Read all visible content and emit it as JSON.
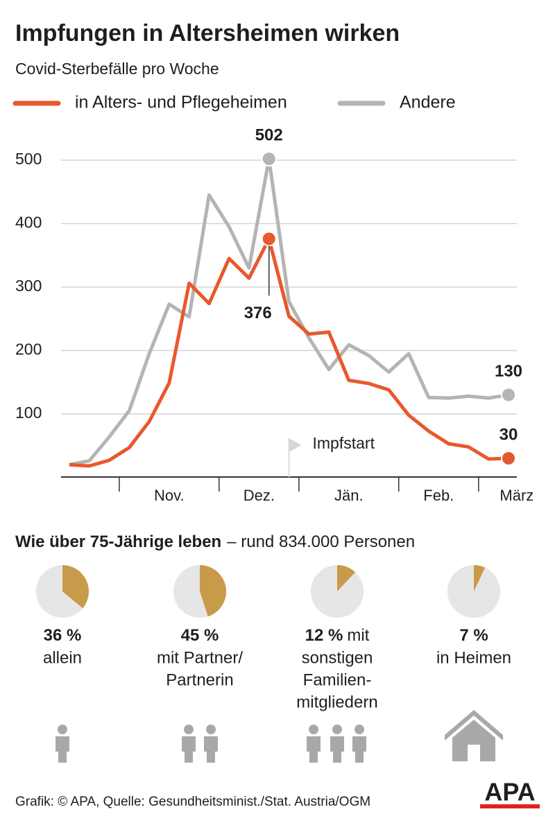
{
  "chart_data": [
    {
      "type": "line",
      "title": "Impfungen in Altersheimen wirken",
      "subtitle": "Covid-Sterbefälle pro Woche",
      "x": [
        0,
        1,
        2,
        3,
        4,
        5,
        6,
        7,
        8,
        9,
        10,
        11,
        12,
        13,
        14,
        15,
        16,
        17,
        18,
        19,
        20,
        21,
        22
      ],
      "xlim": [
        0,
        22
      ],
      "xticks": [
        2.5,
        7.5,
        11.5,
        16.5,
        20.5
      ],
      "months": [
        "Nov.",
        "Dez.",
        "Jän.",
        "Feb.",
        "März"
      ],
      "ylim": [
        0,
        500
      ],
      "yticks": [
        100,
        200,
        300,
        400,
        500
      ],
      "grid": true,
      "series": [
        {
          "name": "in Alters- und Pflegeheimen",
          "color": "#e8582e",
          "values": [
            20,
            18,
            27,
            47,
            88,
            149,
            306,
            274,
            345,
            314,
            376,
            254,
            226,
            229,
            153,
            148,
            138,
            98,
            73,
            53,
            48,
            29,
            30
          ],
          "labeled": [
            {
              "index": 10,
              "position": "below"
            },
            {
              "index": 22,
              "position": "above"
            }
          ]
        },
        {
          "name": "Andere",
          "color": "#b4b4b4",
          "values": [
            20,
            26,
            64,
            105,
            195,
            273,
            253,
            445,
            395,
            330,
            502,
            277,
            220,
            170,
            209,
            192,
            166,
            195,
            126,
            125,
            128,
            125,
            130
          ],
          "labeled": [
            {
              "index": 10,
              "position": "above"
            },
            {
              "index": 22,
              "position": "above"
            }
          ]
        }
      ],
      "annotations": [
        {
          "text": "Impfstart",
          "x": 11
        }
      ]
    },
    {
      "type": "pie",
      "title": "Wie über 75-Jährige leben",
      "subtitle": "– rund 834.000 Personen",
      "values": [
        36,
        45,
        12,
        7
      ],
      "value_labels": [
        "36 %",
        "45 %",
        "12 %",
        "7 %"
      ],
      "categories": [
        [
          "allein"
        ],
        [
          "mit Partner/",
          "Partnerin"
        ],
        [
          "mit",
          "sonstigen",
          "Familien-",
          "mitgliedern"
        ],
        [
          "in Heimen"
        ]
      ],
      "inline_first_line": [
        false,
        false,
        true,
        false
      ],
      "color": "#c89b4a",
      "rest_color": "#e6e6e6"
    }
  ],
  "footer": {
    "source": "Grafik: © APA, Quelle: Gesundheitsminist./Stat. Austria/OGM",
    "logo": "APA"
  }
}
